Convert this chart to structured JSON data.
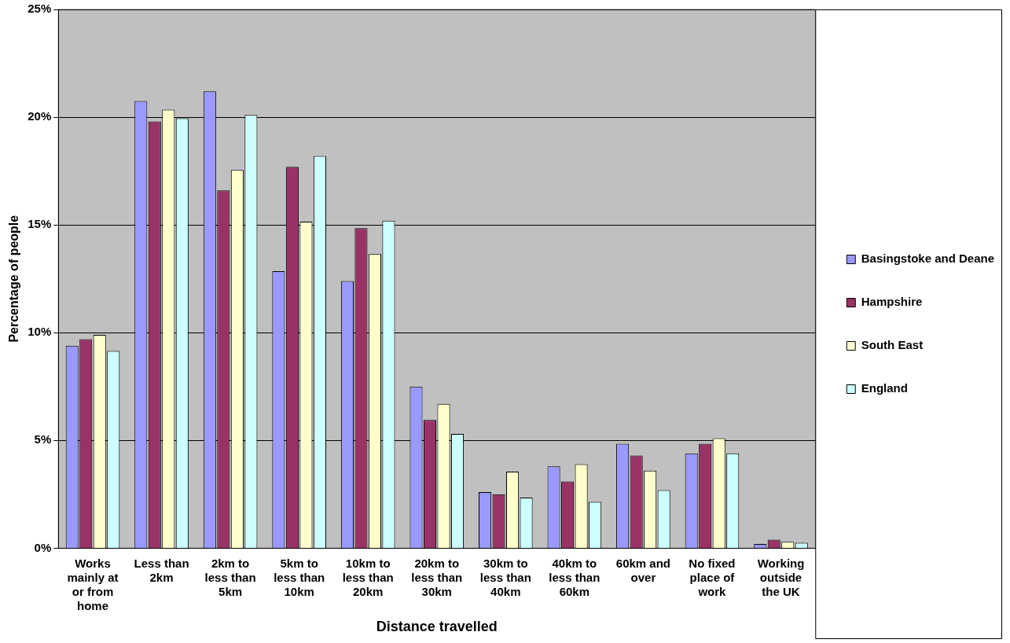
{
  "chart_data": {
    "type": "bar",
    "xlabel": "Distance travelled",
    "ylabel": "Percentage of people",
    "categories": [
      "Works mainly at or from home",
      "Less than 2km",
      "2km to less than 5km",
      "5km to less than 10km",
      "10km to less than 20km",
      "20km to less than 30km",
      "30km to less than 40km",
      "40km to less than 60km",
      "60km and over",
      "No fixed place of work",
      "Working outside the UK"
    ],
    "series": [
      {
        "name": "Basingstoke and Deane",
        "color": "#9999ff",
        "values": [
          9.4,
          20.75,
          21.2,
          12.85,
          12.4,
          7.5,
          2.6,
          3.8,
          4.85,
          4.4,
          0.2
        ]
      },
      {
        "name": "Hampshire",
        "color": "#993366",
        "values": [
          9.7,
          19.8,
          16.6,
          17.7,
          14.85,
          5.95,
          2.5,
          3.1,
          4.3,
          4.85,
          0.4
        ]
      },
      {
        "name": "South East",
        "color": "#ffffcc",
        "values": [
          9.9,
          20.35,
          17.55,
          15.15,
          13.65,
          6.7,
          3.55,
          3.9,
          3.6,
          5.1,
          0.3
        ]
      },
      {
        "name": "England",
        "color": "#ccffff",
        "values": [
          9.15,
          19.95,
          20.1,
          18.2,
          15.2,
          5.3,
          2.35,
          2.15,
          2.7,
          4.4,
          0.25
        ]
      }
    ],
    "ylim": [
      0,
      25
    ],
    "yticks": [
      {
        "value": 0,
        "label": "0%"
      },
      {
        "value": 5,
        "label": "5%"
      },
      {
        "value": 10,
        "label": "10%"
      },
      {
        "value": 15,
        "label": "15%"
      },
      {
        "value": 20,
        "label": "20%"
      },
      {
        "value": 25,
        "label": "25%"
      }
    ],
    "grid": "y",
    "legend": "right"
  }
}
